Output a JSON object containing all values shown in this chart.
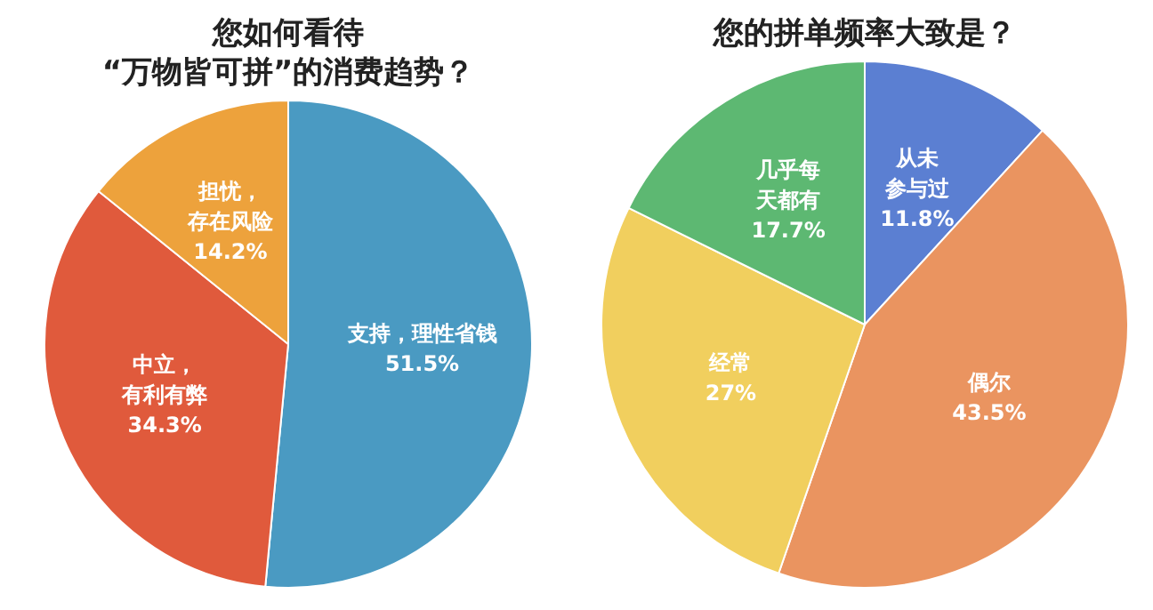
{
  "chart_data": [
    {
      "type": "pie",
      "title": "您如何看待\n“万物皆可拼”的消费趋势？",
      "categories": [
        "支持，理性省钱",
        "中立，有利有弊",
        "担忧，存在风险"
      ],
      "values": [
        51.5,
        34.3,
        14.2
      ],
      "value_labels": [
        "51.5%",
        "34.3%",
        "14.2%"
      ],
      "colors": [
        "#4a9ac2",
        "#e05a3c",
        "#eda23c"
      ]
    },
    {
      "type": "pie",
      "title": "您的拼单频率大致是？",
      "categories": [
        "从未参与过",
        "偶尔",
        "经常",
        "几乎每天都有"
      ],
      "values": [
        11.8,
        43.5,
        27,
        17.7
      ],
      "value_labels": [
        "11.8%",
        "43.5%",
        "27%",
        "17.7%"
      ],
      "colors": [
        "#5b7fd2",
        "#ea9460",
        "#f1cf5e",
        "#5db872"
      ]
    }
  ]
}
